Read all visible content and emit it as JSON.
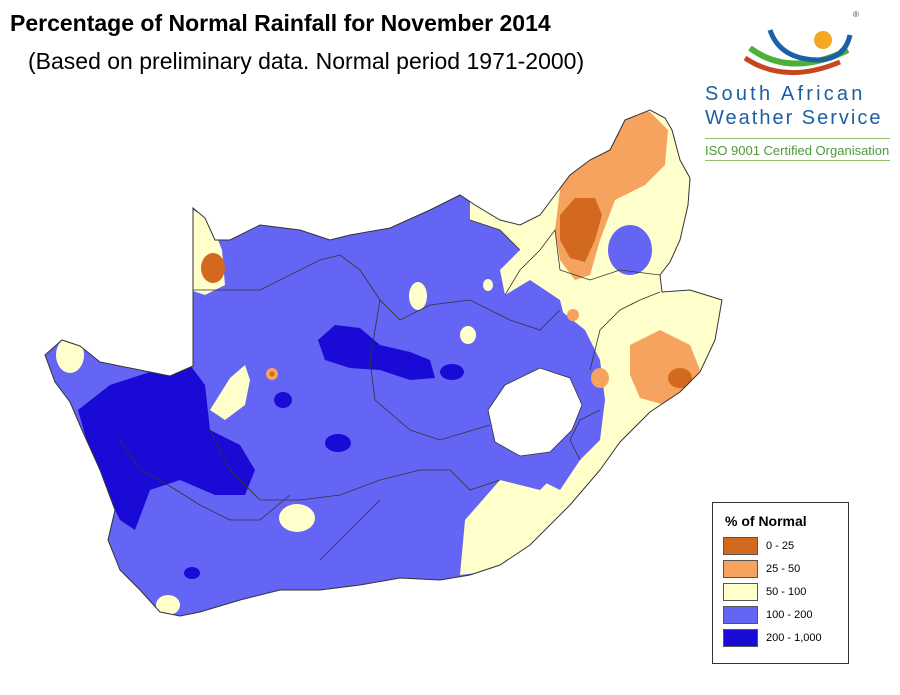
{
  "title": "Percentage of Normal Rainfall for November 2014",
  "subtitle": "(Based on preliminary data. Normal period 1971-2000)",
  "logo": {
    "line1": "South African",
    "line2": "Weather Service",
    "tagline": "ISO 9001 Certified Organisation",
    "registered": "®",
    "colors": {
      "blue": "#1d5fa4",
      "green": "#4bb03a",
      "red": "#c8461e",
      "sun": "#f5a623"
    }
  },
  "legend": {
    "title": "% of Normal",
    "items": [
      {
        "label": "0 - 25",
        "color": "#d2691e"
      },
      {
        "label": "25 - 50",
        "color": "#f5a35e"
      },
      {
        "label": "50 - 100",
        "color": "#ffffcc"
      },
      {
        "label": "100 - 200",
        "color": "#6464f5"
      },
      {
        "label": "200 - 1,000",
        "color": "#1a0ad6"
      }
    ]
  }
}
